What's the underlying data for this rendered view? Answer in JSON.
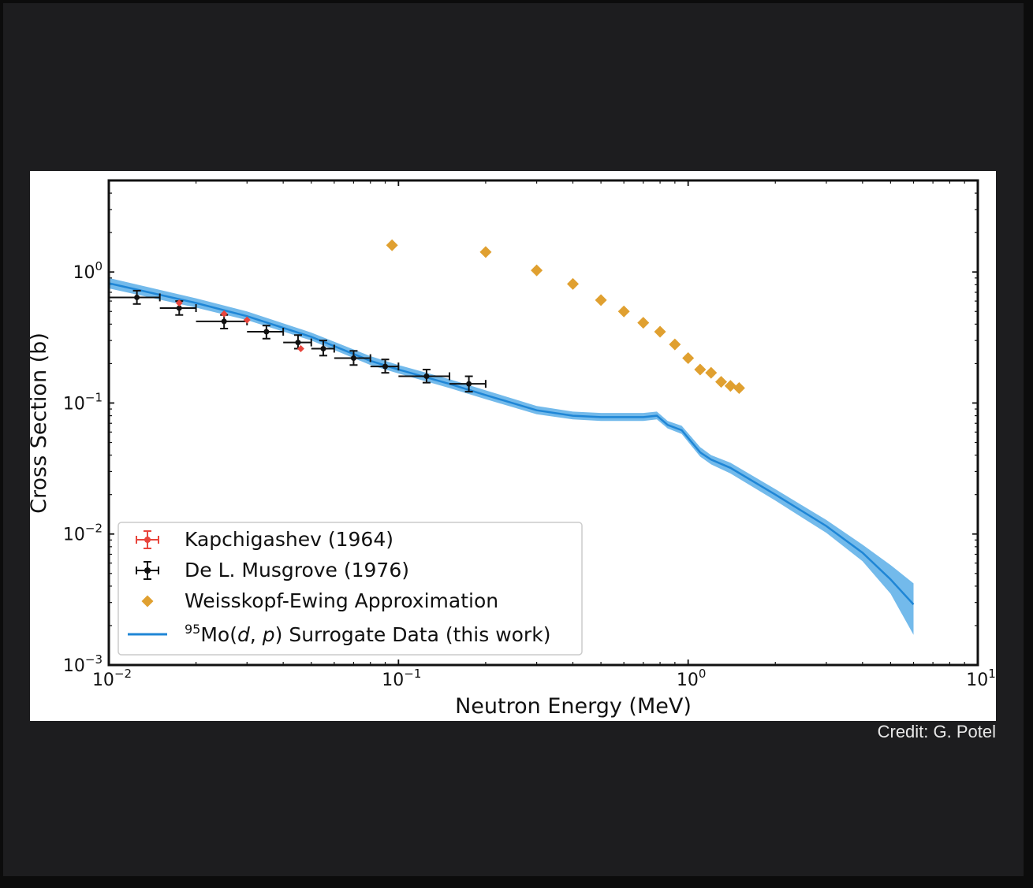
{
  "credit": "Credit: G. Potel",
  "colors": {
    "kapchigashev": "#e8453c",
    "musgrove": "#111111",
    "weisskopf": "#e0a030",
    "surrogate_line": "#1f86d6",
    "surrogate_band": "#5aaee8"
  },
  "chart_data": {
    "type": "scatter",
    "xlabel": "Neutron Energy (MeV)",
    "ylabel": "Cross Section (b)",
    "xscale": "log",
    "yscale": "log",
    "xlim": [
      0.01,
      10
    ],
    "ylim": [
      0.001,
      5
    ],
    "x_ticks": [
      {
        "value": 0.01,
        "base": "10",
        "exp": "−2"
      },
      {
        "value": 0.1,
        "base": "10",
        "exp": "−1"
      },
      {
        "value": 1,
        "base": "10",
        "exp": "0"
      },
      {
        "value": 10,
        "base": "10",
        "exp": "1"
      }
    ],
    "y_ticks": [
      {
        "value": 0.001,
        "base": "10",
        "exp": "−3"
      },
      {
        "value": 0.01,
        "base": "10",
        "exp": "−2"
      },
      {
        "value": 0.1,
        "base": "10",
        "exp": "−1"
      },
      {
        "value": 1,
        "base": "10",
        "exp": "0"
      }
    ],
    "grid": false,
    "legend_position": "lower-left",
    "series": [
      {
        "name": "Kapchigashev (1964)",
        "kind": "errorbar",
        "color_key": "kapchigashev",
        "points": [
          {
            "x": 0.0175,
            "y": 0.58
          },
          {
            "x": 0.025,
            "y": 0.48
          },
          {
            "x": 0.03,
            "y": 0.43
          },
          {
            "x": 0.046,
            "y": 0.26
          }
        ]
      },
      {
        "name": "De L. Musgrove (1976)",
        "kind": "errorbar",
        "color_key": "musgrove",
        "points": [
          {
            "x": 0.0125,
            "y": 0.64,
            "xlo": 0.01,
            "xhi": 0.015,
            "ylo": 0.57,
            "yhi": 0.72
          },
          {
            "x": 0.0175,
            "y": 0.53,
            "xlo": 0.015,
            "xhi": 0.02,
            "ylo": 0.47,
            "yhi": 0.6
          },
          {
            "x": 0.025,
            "y": 0.42,
            "xlo": 0.02,
            "xhi": 0.03,
            "ylo": 0.37,
            "yhi": 0.47
          },
          {
            "x": 0.035,
            "y": 0.35,
            "xlo": 0.03,
            "xhi": 0.04,
            "ylo": 0.31,
            "yhi": 0.39
          },
          {
            "x": 0.045,
            "y": 0.29,
            "xlo": 0.04,
            "xhi": 0.05,
            "ylo": 0.26,
            "yhi": 0.33
          },
          {
            "x": 0.055,
            "y": 0.26,
            "xlo": 0.05,
            "xhi": 0.06,
            "ylo": 0.23,
            "yhi": 0.3
          },
          {
            "x": 0.07,
            "y": 0.22,
            "xlo": 0.06,
            "xhi": 0.08,
            "ylo": 0.195,
            "yhi": 0.25
          },
          {
            "x": 0.09,
            "y": 0.19,
            "xlo": 0.08,
            "xhi": 0.1,
            "ylo": 0.17,
            "yhi": 0.215
          },
          {
            "x": 0.125,
            "y": 0.16,
            "xlo": 0.1,
            "xhi": 0.15,
            "ylo": 0.143,
            "yhi": 0.18
          },
          {
            "x": 0.175,
            "y": 0.14,
            "xlo": 0.15,
            "xhi": 0.2,
            "ylo": 0.122,
            "yhi": 0.16
          }
        ]
      },
      {
        "name": "Weisskopf-Ewing Approximation",
        "kind": "diamond",
        "color_key": "weisskopf",
        "points": [
          {
            "x": 0.095,
            "y": 1.6
          },
          {
            "x": 0.2,
            "y": 1.42
          },
          {
            "x": 0.3,
            "y": 1.03
          },
          {
            "x": 0.4,
            "y": 0.81
          },
          {
            "x": 0.5,
            "y": 0.61
          },
          {
            "x": 0.6,
            "y": 0.5
          },
          {
            "x": 0.7,
            "y": 0.41
          },
          {
            "x": 0.8,
            "y": 0.35
          },
          {
            "x": 0.9,
            "y": 0.28
          },
          {
            "x": 1.0,
            "y": 0.22
          },
          {
            "x": 1.1,
            "y": 0.18
          },
          {
            "x": 1.2,
            "y": 0.17
          },
          {
            "x": 1.3,
            "y": 0.145
          },
          {
            "x": 1.4,
            "y": 0.135
          },
          {
            "x": 1.5,
            "y": 0.13
          }
        ]
      },
      {
        "name_sup": "95",
        "name_main": "Mo(",
        "name_d": "d",
        "name_sep": ", ",
        "name_p": "p",
        "name_rest": ") Surrogate Data (this work)",
        "kind": "band",
        "color_key": "surrogate_line",
        "points": [
          {
            "x": 0.01,
            "y": 0.82,
            "lo": 0.75,
            "hi": 0.9
          },
          {
            "x": 0.02,
            "y": 0.58,
            "lo": 0.535,
            "hi": 0.63
          },
          {
            "x": 0.03,
            "y": 0.46,
            "lo": 0.43,
            "hi": 0.5
          },
          {
            "x": 0.05,
            "y": 0.32,
            "lo": 0.3,
            "hi": 0.345
          },
          {
            "x": 0.08,
            "y": 0.21,
            "lo": 0.195,
            "hi": 0.228
          },
          {
            "x": 0.1,
            "y": 0.18,
            "lo": 0.168,
            "hi": 0.195
          },
          {
            "x": 0.15,
            "y": 0.14,
            "lo": 0.13,
            "hi": 0.152
          },
          {
            "x": 0.2,
            "y": 0.115,
            "lo": 0.107,
            "hi": 0.125
          },
          {
            "x": 0.3,
            "y": 0.088,
            "lo": 0.082,
            "hi": 0.095
          },
          {
            "x": 0.4,
            "y": 0.08,
            "lo": 0.075,
            "hi": 0.086
          },
          {
            "x": 0.5,
            "y": 0.078,
            "lo": 0.073,
            "hi": 0.084
          },
          {
            "x": 0.7,
            "y": 0.078,
            "lo": 0.073,
            "hi": 0.084
          },
          {
            "x": 0.78,
            "y": 0.08,
            "lo": 0.075,
            "hi": 0.086
          },
          {
            "x": 0.85,
            "y": 0.068,
            "lo": 0.064,
            "hi": 0.073
          },
          {
            "x": 0.95,
            "y": 0.062,
            "lo": 0.058,
            "hi": 0.067
          },
          {
            "x": 1.1,
            "y": 0.042,
            "lo": 0.039,
            "hi": 0.046
          },
          {
            "x": 1.2,
            "y": 0.037,
            "lo": 0.034,
            "hi": 0.04
          },
          {
            "x": 1.4,
            "y": 0.032,
            "lo": 0.029,
            "hi": 0.035
          },
          {
            "x": 2.0,
            "y": 0.02,
            "lo": 0.018,
            "hi": 0.022
          },
          {
            "x": 3.0,
            "y": 0.0115,
            "lo": 0.0102,
            "hi": 0.0128
          },
          {
            "x": 4.0,
            "y": 0.0072,
            "lo": 0.0062,
            "hi": 0.0083
          },
          {
            "x": 5.0,
            "y": 0.0045,
            "lo": 0.0035,
            "hi": 0.0058
          },
          {
            "x": 6.0,
            "y": 0.0029,
            "lo": 0.0017,
            "hi": 0.0042
          }
        ]
      }
    ],
    "legend": [
      {
        "label": "Kapchigashev (1964)",
        "kind": "errorbar",
        "color_key": "kapchigashev"
      },
      {
        "label": "De L. Musgrove (1976)",
        "kind": "errorbar",
        "color_key": "musgrove"
      },
      {
        "label": "Weisskopf-Ewing Approximation",
        "kind": "diamond",
        "color_key": "weisskopf"
      }
    ]
  }
}
